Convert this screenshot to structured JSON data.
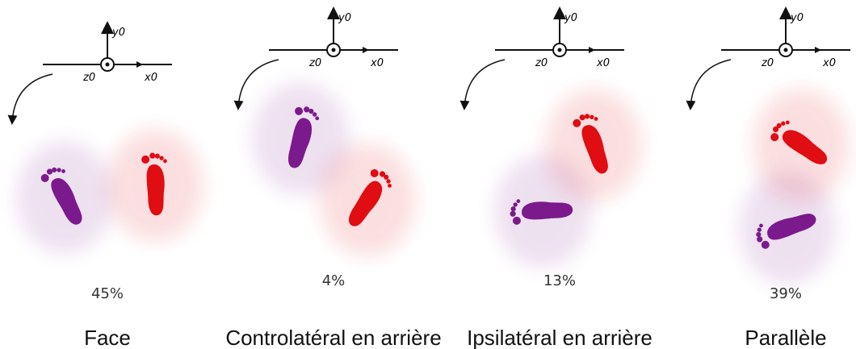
{
  "axes": {
    "y": "y0",
    "z": "z0",
    "x": "x0"
  },
  "panels": [
    {
      "percent": "45%",
      "label": "Face"
    },
    {
      "percent": "4%",
      "label": "Controlatéral en arrière"
    },
    {
      "percent": "13%",
      "label": "Ipsilatéral en arrière"
    },
    {
      "percent": "39%",
      "label": "Parallèle"
    }
  ]
}
